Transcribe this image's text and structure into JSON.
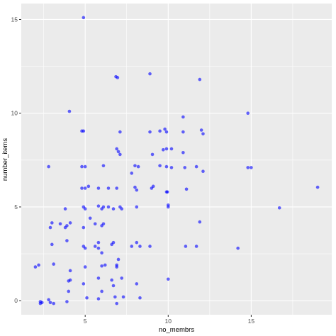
{
  "chart_data": {
    "type": "scatter",
    "xlabel": "no_membrs",
    "ylabel": "number_items",
    "xlim": [
      1.15,
      19.85
    ],
    "ylim": [
      -0.75,
      15.85
    ],
    "x_ticks": [
      5,
      10,
      15
    ],
    "y_ticks": [
      0,
      5,
      10,
      15
    ],
    "x_tick_labels": [
      "5",
      "10",
      "15"
    ],
    "y_tick_labels": [
      "0",
      "5",
      "10",
      "15"
    ],
    "grid": true,
    "legend": "none",
    "colors": {
      "panel": "#ebebeb",
      "grid_major": "#ffffff",
      "point": "#0000ff",
      "tick_label": "#4d4d4d",
      "axis_title": "#000000"
    },
    "points": [
      {
        "x": 2.0,
        "y": 1.8
      },
      {
        "x": 2.2,
        "y": 1.9
      },
      {
        "x": 2.3,
        "y": -0.05
      },
      {
        "x": 2.4,
        "y": -0.1
      },
      {
        "x": 2.3,
        "y": -0.15
      },
      {
        "x": 2.8,
        "y": 7.15
      },
      {
        "x": 2.8,
        "y": 0.05
      },
      {
        "x": 2.9,
        "y": -0.1
      },
      {
        "x": 2.9,
        "y": 3.9
      },
      {
        "x": 3.0,
        "y": 4.15
      },
      {
        "x": 3.0,
        "y": 3.0
      },
      {
        "x": 3.1,
        "y": 1.95
      },
      {
        "x": 3.1,
        "y": -0.15
      },
      {
        "x": 3.5,
        "y": 4.1
      },
      {
        "x": 3.8,
        "y": 4.9
      },
      {
        "x": 3.8,
        "y": 3.9
      },
      {
        "x": 3.9,
        "y": 4.0
      },
      {
        "x": 3.9,
        "y": 3.2
      },
      {
        "x": 3.9,
        "y": -0.05
      },
      {
        "x": 4.0,
        "y": 1.05
      },
      {
        "x": 4.0,
        "y": 0.5
      },
      {
        "x": 4.05,
        "y": 10.1
      },
      {
        "x": 4.1,
        "y": 4.15
      },
      {
        "x": 4.1,
        "y": 1.6
      },
      {
        "x": 4.1,
        "y": 1.1
      },
      {
        "x": 4.8,
        "y": 9.05
      },
      {
        "x": 4.8,
        "y": 7.15
      },
      {
        "x": 4.8,
        "y": 6.0
      },
      {
        "x": 4.9,
        "y": 15.1
      },
      {
        "x": 4.9,
        "y": 9.05
      },
      {
        "x": 4.9,
        "y": 5.0
      },
      {
        "x": 4.9,
        "y": 3.9
      },
      {
        "x": 4.9,
        "y": 2.9
      },
      {
        "x": 4.9,
        "y": 0.9
      },
      {
        "x": 5.0,
        "y": 7.15
      },
      {
        "x": 5.0,
        "y": 6.0
      },
      {
        "x": 5.0,
        "y": 4.9
      },
      {
        "x": 5.0,
        "y": 2.8
      },
      {
        "x": 5.0,
        "y": 1.8
      },
      {
        "x": 5.1,
        "y": 0.15
      },
      {
        "x": 5.2,
        "y": 6.1
      },
      {
        "x": 5.3,
        "y": 4.4
      },
      {
        "x": 5.6,
        "y": 4.1
      },
      {
        "x": 5.6,
        "y": 2.9
      },
      {
        "x": 5.8,
        "y": 6.0
      },
      {
        "x": 5.8,
        "y": 5.05
      },
      {
        "x": 5.8,
        "y": 3.1
      },
      {
        "x": 5.8,
        "y": 2.8
      },
      {
        "x": 5.8,
        "y": 1.2
      },
      {
        "x": 5.8,
        "y": 0.1
      },
      {
        "x": 6.0,
        "y": 4.9
      },
      {
        "x": 6.0,
        "y": 4.0
      },
      {
        "x": 6.0,
        "y": 2.55
      },
      {
        "x": 6.0,
        "y": 1.85
      },
      {
        "x": 6.0,
        "y": 0.5
      },
      {
        "x": 6.1,
        "y": 7.2
      },
      {
        "x": 6.1,
        "y": 5.0
      },
      {
        "x": 6.1,
        "y": 4.1
      },
      {
        "x": 6.2,
        "y": 1.9
      },
      {
        "x": 6.4,
        "y": 6.0
      },
      {
        "x": 6.4,
        "y": 5.0
      },
      {
        "x": 6.6,
        "y": 3.0
      },
      {
        "x": 6.6,
        "y": 1.1
      },
      {
        "x": 6.7,
        "y": 4.9
      },
      {
        "x": 6.7,
        "y": 3.1
      },
      {
        "x": 6.7,
        "y": 0.8
      },
      {
        "x": 6.8,
        "y": 0.2
      },
      {
        "x": 6.85,
        "y": 11.95
      },
      {
        "x": 6.95,
        "y": 11.9
      },
      {
        "x": 6.9,
        "y": 8.1
      },
      {
        "x": 6.9,
        "y": 6.0
      },
      {
        "x": 6.9,
        "y": 1.9
      },
      {
        "x": 6.9,
        "y": 1.8
      },
      {
        "x": 6.9,
        "y": -0.15
      },
      {
        "x": 7.0,
        "y": 7.95
      },
      {
        "x": 7.0,
        "y": 2.2
      },
      {
        "x": 7.1,
        "y": 9.0
      },
      {
        "x": 7.1,
        "y": 7.8
      },
      {
        "x": 7.1,
        "y": 5.0
      },
      {
        "x": 7.2,
        "y": 4.9
      },
      {
        "x": 7.2,
        "y": 1.2
      },
      {
        "x": 7.3,
        "y": 0.2
      },
      {
        "x": 7.8,
        "y": 2.9
      },
      {
        "x": 7.8,
        "y": 6.8
      },
      {
        "x": 8.0,
        "y": 7.2
      },
      {
        "x": 8.0,
        "y": 6.05
      },
      {
        "x": 8.1,
        "y": 5.9
      },
      {
        "x": 8.1,
        "y": 5.0
      },
      {
        "x": 8.1,
        "y": 3.1
      },
      {
        "x": 8.1,
        "y": 0.9
      },
      {
        "x": 8.2,
        "y": 7.15
      },
      {
        "x": 8.3,
        "y": 2.9
      },
      {
        "x": 8.3,
        "y": 0.15
      },
      {
        "x": 8.9,
        "y": 12.1
      },
      {
        "x": 8.9,
        "y": 9.0
      },
      {
        "x": 8.9,
        "y": 2.9
      },
      {
        "x": 9.05,
        "y": 7.8
      },
      {
        "x": 9.1,
        "y": 6.1
      },
      {
        "x": 9.0,
        "y": 6.0
      },
      {
        "x": 9.5,
        "y": 9.05
      },
      {
        "x": 9.5,
        "y": 7.2
      },
      {
        "x": 9.7,
        "y": 8.05
      },
      {
        "x": 9.8,
        "y": 9.15
      },
      {
        "x": 9.9,
        "y": 9.0
      },
      {
        "x": 9.9,
        "y": 8.1
      },
      {
        "x": 9.9,
        "y": 7.15
      },
      {
        "x": 9.9,
        "y": 5.8
      },
      {
        "x": 9.95,
        "y": 5.8
      },
      {
        "x": 10.0,
        "y": 5.1
      },
      {
        "x": 10.0,
        "y": 5.0
      },
      {
        "x": 10.0,
        "y": 1.15
      },
      {
        "x": 10.2,
        "y": 8.1
      },
      {
        "x": 10.2,
        "y": 7.1
      },
      {
        "x": 10.9,
        "y": 9.8
      },
      {
        "x": 10.9,
        "y": 9.0
      },
      {
        "x": 10.9,
        "y": 7.9
      },
      {
        "x": 11.0,
        "y": 7.1
      },
      {
        "x": 11.05,
        "y": 2.9
      },
      {
        "x": 11.1,
        "y": 5.95
      },
      {
        "x": 11.7,
        "y": 7.15
      },
      {
        "x": 11.7,
        "y": 2.9
      },
      {
        "x": 11.9,
        "y": 11.8
      },
      {
        "x": 11.9,
        "y": 4.2
      },
      {
        "x": 12.0,
        "y": 9.1
      },
      {
        "x": 12.1,
        "y": 8.9
      },
      {
        "x": 12.1,
        "y": 6.9
      },
      {
        "x": 14.2,
        "y": 2.8
      },
      {
        "x": 14.8,
        "y": 10.0
      },
      {
        "x": 14.8,
        "y": 7.1
      },
      {
        "x": 15.0,
        "y": 7.1
      },
      {
        "x": 16.7,
        "y": 4.95
      },
      {
        "x": 19.0,
        "y": 6.05
      }
    ]
  }
}
